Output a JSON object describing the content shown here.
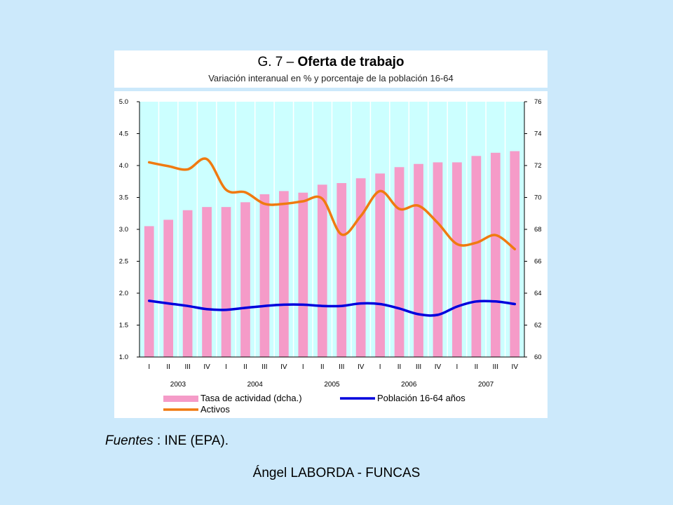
{
  "title": {
    "prefix": "G. 7 – ",
    "bold": "Oferta de trabajo",
    "subtitle": "Variación interanual en % y porcentaje de la población 16-64"
  },
  "source": {
    "label": "Fuentes",
    "text": " : INE (EPA)."
  },
  "footer": "Ángel LABORDA - FUNCAS",
  "colors": {
    "plot_bg": "#ccffff",
    "bar": "#f59bc8",
    "poblacion": "#0000dd",
    "activos": "#f07a10"
  },
  "chart_data": {
    "type": "bar+line",
    "categories": [
      "I",
      "II",
      "III",
      "IV",
      "I",
      "II",
      "III",
      "IV",
      "I",
      "II",
      "III",
      "IV",
      "I",
      "II",
      "III",
      "IV",
      "I",
      "II",
      "III",
      "IV"
    ],
    "years": [
      "2003",
      "2004",
      "2005",
      "2006",
      "2007"
    ],
    "left_axis": {
      "ylim": [
        1.0,
        5.0
      ],
      "ticks": [
        "1.0",
        "1.5",
        "2.0",
        "2.5",
        "3.0",
        "3.5",
        "4.0",
        "4.5",
        "5.0"
      ]
    },
    "right_axis": {
      "ylim": [
        60,
        76
      ],
      "ticks": [
        "60",
        "62",
        "64",
        "66",
        "68",
        "70",
        "72",
        "74",
        "76"
      ]
    },
    "grid": "vertical",
    "legend_position": "bottom",
    "series": [
      {
        "name": "Tasa de actividad (dcha.)",
        "type": "bar",
        "axis": "right",
        "values": [
          68.2,
          68.6,
          69.2,
          69.4,
          69.4,
          69.7,
          70.2,
          70.4,
          70.3,
          70.8,
          70.9,
          71.2,
          71.5,
          71.9,
          72.1,
          72.2,
          72.2,
          72.6,
          72.8,
          72.9
        ]
      },
      {
        "name": "Población 16-64 años",
        "type": "line",
        "axis": "left",
        "values": [
          1.88,
          1.84,
          1.8,
          1.75,
          1.74,
          1.77,
          1.8,
          1.82,
          1.82,
          1.8,
          1.8,
          1.84,
          1.83,
          1.76,
          1.67,
          1.66,
          1.79,
          1.87,
          1.87,
          1.83
        ]
      },
      {
        "name": "Activos",
        "type": "line",
        "axis": "left",
        "values": [
          4.05,
          3.99,
          3.94,
          4.1,
          3.62,
          3.58,
          3.4,
          3.4,
          3.44,
          3.48,
          2.92,
          3.21,
          3.6,
          3.32,
          3.37,
          3.1,
          2.77,
          2.79,
          2.91,
          2.69
        ]
      }
    ]
  }
}
